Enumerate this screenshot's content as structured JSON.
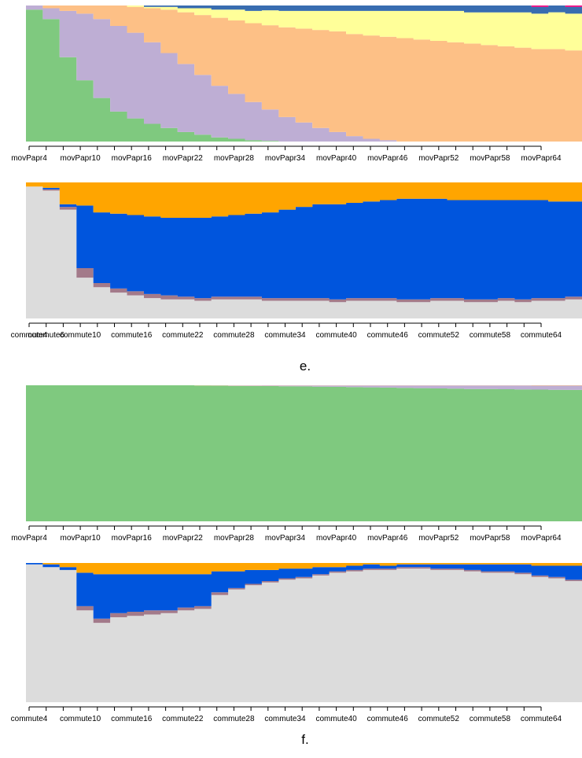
{
  "captions": [
    "e.",
    "f."
  ],
  "chart_data": [
    {
      "type": "area",
      "stacked": "proportional",
      "panel": "e.",
      "x_prefix": "movPapr",
      "x": [
        4,
        6,
        8,
        10,
        12,
        14,
        16,
        18,
        20,
        22,
        24,
        26,
        28,
        30,
        32,
        34,
        36,
        38,
        40,
        42,
        44,
        46,
        48,
        50,
        52,
        54,
        56,
        58,
        60,
        62,
        64,
        66,
        68
      ],
      "xticks": [
        "movPapr4",
        "movPapr10",
        "movPapr16",
        "movPapr22",
        "movPapr28",
        "movPapr34",
        "movPapr40",
        "movPapr46",
        "movPapr52",
        "movPapr58",
        "movPapr64"
      ],
      "ylim": [
        0,
        1
      ],
      "series": [
        {
          "color": "#7fc97f",
          "values": [
            0.97,
            0.9,
            0.62,
            0.45,
            0.32,
            0.22,
            0.17,
            0.13,
            0.1,
            0.07,
            0.05,
            0.03,
            0.02,
            0.01,
            0.005,
            0,
            0,
            0,
            0,
            0,
            0,
            0,
            0,
            0,
            0,
            0,
            0,
            0,
            0,
            0,
            0,
            0,
            0
          ]
        },
        {
          "color": "#beaed4",
          "values": [
            0.03,
            0.08,
            0.34,
            0.49,
            0.58,
            0.63,
            0.63,
            0.6,
            0.55,
            0.5,
            0.44,
            0.38,
            0.33,
            0.28,
            0.23,
            0.18,
            0.14,
            0.1,
            0.07,
            0.04,
            0.02,
            0.01,
            0,
            0,
            0,
            0,
            0,
            0,
            0,
            0,
            0,
            0,
            0
          ]
        },
        {
          "color": "#fdc086",
          "values": [
            0,
            0.02,
            0.04,
            0.06,
            0.1,
            0.15,
            0.19,
            0.25,
            0.32,
            0.38,
            0.44,
            0.5,
            0.54,
            0.58,
            0.62,
            0.66,
            0.69,
            0.72,
            0.74,
            0.75,
            0.76,
            0.76,
            0.76,
            0.75,
            0.74,
            0.73,
            0.72,
            0.71,
            0.7,
            0.69,
            0.68,
            0.68,
            0.67
          ]
        },
        {
          "color": "#ffff99",
          "values": [
            0,
            0,
            0,
            0,
            0,
            0,
            0.01,
            0.01,
            0.02,
            0.03,
            0.05,
            0.06,
            0.08,
            0.09,
            0.11,
            0.12,
            0.13,
            0.14,
            0.15,
            0.17,
            0.18,
            0.19,
            0.2,
            0.21,
            0.22,
            0.23,
            0.23,
            0.24,
            0.25,
            0.26,
            0.26,
            0.27,
            0.27
          ]
        },
        {
          "color": "#386cb0",
          "values": [
            0,
            0,
            0,
            0,
            0,
            0,
            0,
            0.01,
            0.01,
            0.02,
            0.02,
            0.03,
            0.03,
            0.04,
            0.04,
            0.04,
            0.04,
            0.04,
            0.04,
            0.04,
            0.04,
            0.04,
            0.04,
            0.04,
            0.04,
            0.04,
            0.05,
            0.05,
            0.05,
            0.05,
            0.05,
            0.05,
            0.05
          ]
        },
        {
          "color": "#f0027f",
          "values": [
            0,
            0,
            0,
            0,
            0,
            0,
            0,
            0,
            0,
            0,
            0,
            0,
            0,
            0,
            0,
            0,
            0,
            0,
            0,
            0,
            0,
            0,
            0,
            0,
            0,
            0,
            0,
            0,
            0.01,
            0.01,
            0.01,
            0.01,
            0.01
          ]
        }
      ]
    },
    {
      "type": "area",
      "stacked": "proportional",
      "panel": "e.",
      "x_prefix": "commute",
      "x": [
        4,
        6,
        8,
        10,
        12,
        14,
        16,
        18,
        20,
        22,
        24,
        26,
        28,
        30,
        32,
        34,
        36,
        38,
        40,
        42,
        44,
        46,
        48,
        50,
        52,
        54,
        56,
        58,
        60,
        62,
        64,
        66,
        68
      ],
      "xticks": [
        "commute4",
        "commute6",
        "commute10",
        "commute16",
        "commute22",
        "commute28",
        "commute34",
        "commute40",
        "commute46",
        "commute52",
        "commute58",
        "commute64"
      ],
      "ylim": [
        0,
        1
      ],
      "series": [
        {
          "color": "#dcdcdc",
          "values": [
            0.97,
            0.94,
            0.8,
            0.3,
            0.23,
            0.19,
            0.17,
            0.15,
            0.14,
            0.14,
            0.13,
            0.14,
            0.14,
            0.14,
            0.13,
            0.13,
            0.13,
            0.13,
            0.12,
            0.13,
            0.13,
            0.13,
            0.12,
            0.12,
            0.13,
            0.13,
            0.12,
            0.12,
            0.13,
            0.12,
            0.13,
            0.13,
            0.14
          ]
        },
        {
          "color": "#a37a8a",
          "values": [
            0,
            0.01,
            0.02,
            0.07,
            0.03,
            0.03,
            0.03,
            0.03,
            0.03,
            0.02,
            0.02,
            0.02,
            0.02,
            0.02,
            0.02,
            0.02,
            0.02,
            0.02,
            0.02,
            0.02,
            0.02,
            0.02,
            0.02,
            0.02,
            0.02,
            0.02,
            0.02,
            0.02,
            0.02,
            0.02,
            0.02,
            0.02,
            0.02
          ]
        },
        {
          "color": "#0055dd",
          "values": [
            0,
            0.01,
            0.02,
            0.46,
            0.52,
            0.55,
            0.56,
            0.57,
            0.57,
            0.58,
            0.59,
            0.59,
            0.6,
            0.61,
            0.63,
            0.65,
            0.67,
            0.69,
            0.7,
            0.7,
            0.71,
            0.72,
            0.74,
            0.74,
            0.73,
            0.72,
            0.73,
            0.73,
            0.72,
            0.73,
            0.72,
            0.71,
            0.7
          ]
        },
        {
          "color": "#ffa500",
          "values": [
            0.03,
            0.04,
            0.16,
            0.17,
            0.22,
            0.23,
            0.24,
            0.25,
            0.26,
            0.26,
            0.26,
            0.25,
            0.24,
            0.23,
            0.22,
            0.2,
            0.18,
            0.16,
            0.16,
            0.15,
            0.14,
            0.13,
            0.12,
            0.12,
            0.12,
            0.13,
            0.13,
            0.13,
            0.13,
            0.13,
            0.13,
            0.14,
            0.14
          ]
        }
      ]
    },
    {
      "type": "area",
      "stacked": "proportional",
      "panel": "f.",
      "x_prefix": "movPapr",
      "x": [
        4,
        6,
        8,
        10,
        12,
        14,
        16,
        18,
        20,
        22,
        24,
        26,
        28,
        30,
        32,
        34,
        36,
        38,
        40,
        42,
        44,
        46,
        48,
        50,
        52,
        54,
        56,
        58,
        60,
        62,
        64,
        66,
        68
      ],
      "xticks": [
        "movPapr4",
        "movPapr10",
        "movPapr16",
        "movPapr22",
        "movPapr28",
        "movPapr34",
        "movPapr40",
        "movPapr46",
        "movPapr52",
        "movPapr58",
        "movPapr64"
      ],
      "ylim": [
        0,
        1
      ],
      "series": [
        {
          "color": "#7fc97f",
          "values": [
            1,
            1,
            1,
            1,
            1,
            1,
            1,
            1,
            1,
            1,
            0.998,
            0.997,
            0.996,
            0.995,
            0.994,
            0.993,
            0.992,
            0.99,
            0.989,
            0.987,
            0.985,
            0.983,
            0.981,
            0.979,
            0.977,
            0.975,
            0.973,
            0.972,
            0.971,
            0.97,
            0.968,
            0.967,
            0.966
          ]
        },
        {
          "color": "#beaed4",
          "values": [
            0,
            0,
            0,
            0,
            0,
            0,
            0,
            0,
            0,
            0,
            0.001,
            0.002,
            0.003,
            0.004,
            0.005,
            0.006,
            0.007,
            0.009,
            0.01,
            0.012,
            0.014,
            0.016,
            0.018,
            0.02,
            0.022,
            0.024,
            0.025,
            0.026,
            0.027,
            0.028,
            0.029,
            0.03,
            0.031
          ]
        },
        {
          "color": "#fdc086",
          "values": [
            0,
            0,
            0,
            0,
            0,
            0,
            0,
            0,
            0,
            0,
            0.001,
            0.001,
            0.001,
            0.001,
            0.001,
            0.001,
            0.001,
            0.001,
            0.001,
            0.001,
            0.001,
            0.001,
            0.001,
            0.001,
            0.001,
            0.001,
            0.002,
            0.002,
            0.002,
            0.002,
            0.003,
            0.003,
            0.003
          ]
        }
      ]
    },
    {
      "type": "area",
      "stacked": "proportional",
      "panel": "f.",
      "x_prefix": "commute",
      "x": [
        4,
        6,
        8,
        10,
        12,
        14,
        16,
        18,
        20,
        22,
        24,
        26,
        28,
        30,
        32,
        34,
        36,
        38,
        40,
        42,
        44,
        46,
        48,
        50,
        52,
        54,
        56,
        58,
        60,
        62,
        64,
        66,
        68
      ],
      "xticks": [
        "commute4",
        "commute10",
        "commute16",
        "commute22",
        "commute28",
        "commute34",
        "commute40",
        "commute46",
        "commute52",
        "commute58",
        "commute64"
      ],
      "ylim": [
        0,
        1
      ],
      "series": [
        {
          "color": "#dcdcdc",
          "values": [
            0.99,
            0.97,
            0.95,
            0.66,
            0.57,
            0.61,
            0.62,
            0.63,
            0.64,
            0.66,
            0.67,
            0.77,
            0.81,
            0.84,
            0.86,
            0.88,
            0.89,
            0.91,
            0.93,
            0.94,
            0.95,
            0.95,
            0.96,
            0.96,
            0.95,
            0.95,
            0.94,
            0.93,
            0.93,
            0.92,
            0.9,
            0.89,
            0.87
          ]
        },
        {
          "color": "#a37a8a",
          "values": [
            0,
            0,
            0,
            0.03,
            0.03,
            0.03,
            0.03,
            0.03,
            0.02,
            0.02,
            0.02,
            0.02,
            0.01,
            0.01,
            0.01,
            0.01,
            0.01,
            0.01,
            0.01,
            0.01,
            0.01,
            0.01,
            0.01,
            0.01,
            0.01,
            0.01,
            0.01,
            0.01,
            0.01,
            0.01,
            0.01,
            0.01,
            0.01
          ]
        },
        {
          "color": "#0055dd",
          "values": [
            0.01,
            0.02,
            0.02,
            0.24,
            0.32,
            0.28,
            0.27,
            0.26,
            0.26,
            0.24,
            0.23,
            0.15,
            0.12,
            0.1,
            0.08,
            0.07,
            0.06,
            0.05,
            0.03,
            0.03,
            0.03,
            0.02,
            0.02,
            0.02,
            0.03,
            0.03,
            0.04,
            0.05,
            0.05,
            0.06,
            0.07,
            0.08,
            0.1
          ]
        },
        {
          "color": "#ffa500",
          "values": [
            0,
            0.01,
            0.03,
            0.07,
            0.08,
            0.08,
            0.08,
            0.08,
            0.08,
            0.08,
            0.08,
            0.06,
            0.06,
            0.05,
            0.05,
            0.04,
            0.04,
            0.03,
            0.03,
            0.02,
            0.01,
            0.02,
            0.01,
            0.01,
            0.01,
            0.01,
            0.01,
            0.01,
            0.01,
            0.01,
            0.02,
            0.02,
            0.02
          ]
        }
      ]
    }
  ]
}
